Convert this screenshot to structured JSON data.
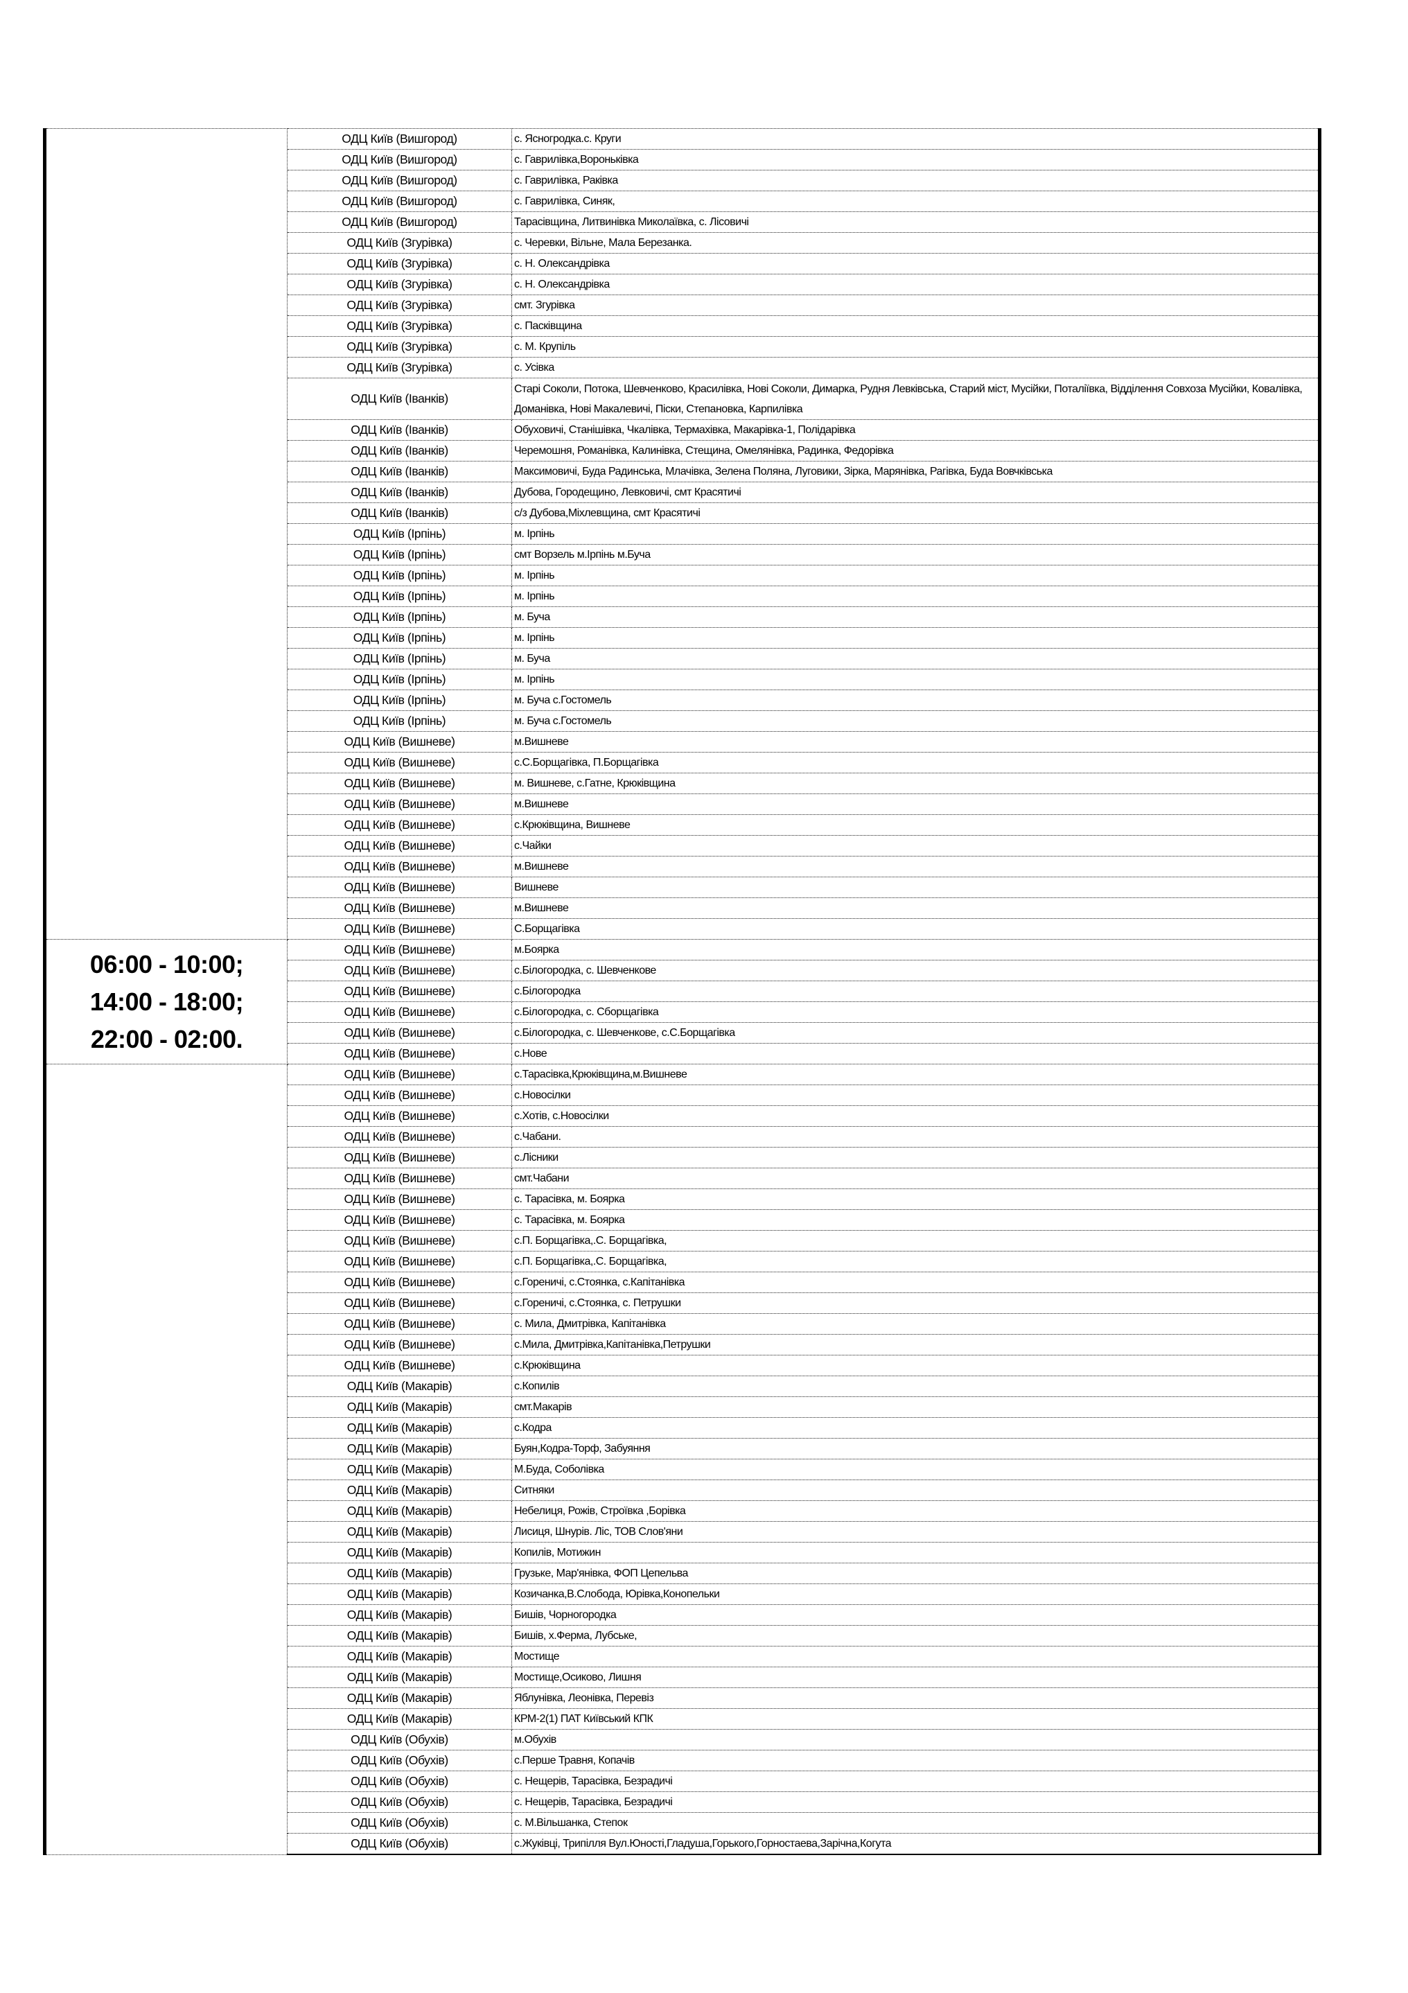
{
  "schedule": {
    "time_lines": [
      "06:00 - 10:00;",
      "14:00 - 18:00;",
      "22:00 - 02:00."
    ],
    "rows": [
      {
        "odc": "ОДЦ Київ (Вишгород)",
        "area": "с. Ясногродка.с. Круги"
      },
      {
        "odc": "ОДЦ Київ (Вишгород)",
        "area": "с. Гаврилівка,Вороньківка"
      },
      {
        "odc": "ОДЦ Київ (Вишгород)",
        "area": "с. Гаврилівка, Раківка"
      },
      {
        "odc": "ОДЦ Київ (Вишгород)",
        "area": "с. Гаврилівка, Синяк,"
      },
      {
        "odc": "ОДЦ Київ (Вишгород)",
        "area": "Тарасівщина, Литвинівка  Миколаївка, с. Лісовичі"
      },
      {
        "odc": "ОДЦ Київ (Згурівка)",
        "area": "с. Черевки, Вільне, Мала Березанка."
      },
      {
        "odc": "ОДЦ Київ (Згурівка)",
        "area": "с. Н. Олександрівка"
      },
      {
        "odc": "ОДЦ Київ (Згурівка)",
        "area": "с. Н. Олександрівка"
      },
      {
        "odc": "ОДЦ Київ (Згурівка)",
        "area": "смт. Згурівка"
      },
      {
        "odc": "ОДЦ Київ (Згурівка)",
        "area": "с. Пасківщина"
      },
      {
        "odc": "ОДЦ Київ (Згурівка)",
        "area": "с. М. Крупіль"
      },
      {
        "odc": "ОДЦ Київ (Згурівка)",
        "area": "с. Усівка"
      },
      {
        "odc": "ОДЦ Київ (Іванків)",
        "area": "Старі Соколи, Потока, Шевченково, Красилівка, Нові Соколи, Димарка, Рудня Левківська, Старий міст, Мусійки, Поталіївка, Відділення Совхоза Мусійки, Ковалівка, Доманівка, Нові Макалевичі, Піски, Степановка, Карпилівка",
        "tall": true
      },
      {
        "odc": "ОДЦ Київ (Іванків)",
        "area": "Обуховичі, Станішівка, Чкалівка, Термахівка, Макарівка-1, Полідарівка"
      },
      {
        "odc": "ОДЦ Київ (Іванків)",
        "area": "Черемошня, Романівка, Калинівка, Стещина, Омелянівка, Радинка, Федорівка"
      },
      {
        "odc": "ОДЦ Київ (Іванків)",
        "area": "Максимовичі, Буда Радинська,  Млачівка, Зелена Поляна, Луговики, Зірка, Марянівка, Рагівка, Буда Вовчківська"
      },
      {
        "odc": "ОДЦ Київ (Іванків)",
        "area": "Дубова, Городещино, Левковичі, смт Красятичі"
      },
      {
        "odc": "ОДЦ Київ (Іванків)",
        "area": "с/з Дубова,Міхлевщина,  смт Красятичі"
      },
      {
        "odc": "ОДЦ Київ (Ірпінь)",
        "area": "м. Ірпінь"
      },
      {
        "odc": "ОДЦ Київ (Ірпінь)",
        "area": "смт  Ворзель м.Ірпінь м.Буча"
      },
      {
        "odc": "ОДЦ Київ (Ірпінь)",
        "area": "м. Ірпінь"
      },
      {
        "odc": "ОДЦ Київ (Ірпінь)",
        "area": "м. Ірпінь"
      },
      {
        "odc": "ОДЦ Київ (Ірпінь)",
        "area": "м. Буча"
      },
      {
        "odc": "ОДЦ Київ (Ірпінь)",
        "area": "м. Ірпінь"
      },
      {
        "odc": "ОДЦ Київ (Ірпінь)",
        "area": "м. Буча"
      },
      {
        "odc": "ОДЦ Київ (Ірпінь)",
        "area": "м. Ірпінь"
      },
      {
        "odc": "ОДЦ Київ (Ірпінь)",
        "area": "м. Буча с.Гостомель"
      },
      {
        "odc": "ОДЦ Київ (Ірпінь)",
        "area": "м. Буча с.Гостомель"
      },
      {
        "odc": "ОДЦ Київ (Вишневе)",
        "area": "м.Вишневе"
      },
      {
        "odc": "ОДЦ Київ (Вишневе)",
        "area": "с.С.Борщагівка, П.Борщагівка"
      },
      {
        "odc": "ОДЦ Київ (Вишневе)",
        "area": "м. Вишневе, с.Гатне, Крюківщина"
      },
      {
        "odc": "ОДЦ Київ (Вишневе)",
        "area": "м.Вишневе"
      },
      {
        "odc": "ОДЦ Київ (Вишневе)",
        "area": "с.Крюківщина, Вишневе"
      },
      {
        "odc": "ОДЦ Київ (Вишневе)",
        "area": "с.Чайки"
      },
      {
        "odc": "ОДЦ Київ (Вишневе)",
        "area": "м.Вишневе"
      },
      {
        "odc": "ОДЦ Київ (Вишневе)",
        "area": "Вишневе"
      },
      {
        "odc": "ОДЦ Київ (Вишневе)",
        "area": "м.Вишневе"
      },
      {
        "odc": "ОДЦ Київ (Вишневе)",
        "area": "С.Борщагівка"
      },
      {
        "odc": "ОДЦ Київ (Вишневе)",
        "area": "м.Боярка"
      },
      {
        "odc": "ОДЦ Київ (Вишневе)",
        "area": "с.Білогородка, с. Шевченкове"
      },
      {
        "odc": "ОДЦ Київ (Вишневе)",
        "area": "с.Білогородка"
      },
      {
        "odc": "ОДЦ Київ (Вишневе)",
        "area": "с.Білогородка, с. Сборщагівка"
      },
      {
        "odc": "ОДЦ Київ (Вишневе)",
        "area": "с.Білогородка, с. Шевченкове, с.С.Борщагівка"
      },
      {
        "odc": "ОДЦ Київ (Вишневе)",
        "area": "с.Нове"
      },
      {
        "odc": "ОДЦ Київ (Вишневе)",
        "area": "с.Тарасівка,Крюківщина,м.Вишневе"
      },
      {
        "odc": "ОДЦ Київ (Вишневе)",
        "area": "с.Новосілки"
      },
      {
        "odc": "ОДЦ Київ (Вишневе)",
        "area": "с.Хотів, с.Новосілки"
      },
      {
        "odc": "ОДЦ Київ (Вишневе)",
        "area": "с.Чабани."
      },
      {
        "odc": "ОДЦ Київ (Вишневе)",
        "area": "с.Лісники"
      },
      {
        "odc": "ОДЦ Київ (Вишневе)",
        "area": "смт.Чабани"
      },
      {
        "odc": "ОДЦ Київ (Вишневе)",
        "area": "с. Тарасівка, м. Боярка"
      },
      {
        "odc": "ОДЦ Київ (Вишневе)",
        "area": "с. Тарасівка,  м. Боярка"
      },
      {
        "odc": "ОДЦ Київ (Вишневе)",
        "area": "с.П. Борщагівка,.С. Борщагівка,"
      },
      {
        "odc": "ОДЦ Київ (Вишневе)",
        "area": "с.П. Борщагівка,.С. Борщагівка,"
      },
      {
        "odc": "ОДЦ Київ (Вишневе)",
        "area": "с.Гореничі, с.Стоянка, с.Капітанівка"
      },
      {
        "odc": "ОДЦ Київ (Вишневе)",
        "area": "с.Гореничі, с.Стоянка, с. Петрушки"
      },
      {
        "odc": "ОДЦ Київ (Вишневе)",
        "area": "с. Мила, Дмитрівка, Капітанівка"
      },
      {
        "odc": "ОДЦ Київ (Вишневе)",
        "area": "с.Мила, Дмитрівка,Капітанівка,Петрушки"
      },
      {
        "odc": "ОДЦ Київ (Вишневе)",
        "area": "с.Крюківщина"
      },
      {
        "odc": "ОДЦ Київ (Макарів)",
        "area": "с.Копилів"
      },
      {
        "odc": "ОДЦ Київ (Макарів)",
        "area": "смт.Макарів"
      },
      {
        "odc": "ОДЦ Київ (Макарів)",
        "area": "с.Кодра"
      },
      {
        "odc": "ОДЦ Київ (Макарів)",
        "area": "Буян,Кодра-Торф, Забуяння"
      },
      {
        "odc": "ОДЦ Київ (Макарів)",
        "area": "М.Буда, Соболівка"
      },
      {
        "odc": "ОДЦ Київ (Макарів)",
        "area": "Ситняки"
      },
      {
        "odc": "ОДЦ Київ (Макарів)",
        "area": "Небелиця, Рожів, Строївка ,Борівка"
      },
      {
        "odc": "ОДЦ Київ (Макарів)",
        "area": "Лисиця, Шнурів. Ліс, ТОВ Слов'яни"
      },
      {
        "odc": "ОДЦ Київ (Макарів)",
        "area": "Копилів, Мотижин"
      },
      {
        "odc": "ОДЦ Київ (Макарів)",
        "area": "Грузьке, Мар'янівка, ФОП Цепельва"
      },
      {
        "odc": "ОДЦ Київ (Макарів)",
        "area": "Козичанка,В.Слобода, Юрівка,Конопельки"
      },
      {
        "odc": "ОДЦ Київ (Макарів)",
        "area": "Бишів, Чорногородка"
      },
      {
        "odc": "ОДЦ Київ (Макарів)",
        "area": "Бишів, х.Ферма, Лубське,"
      },
      {
        "odc": "ОДЦ Київ (Макарів)",
        "area": "Мостище"
      },
      {
        "odc": "ОДЦ Київ (Макарів)",
        "area": "Мостище,Осиково, Лишня"
      },
      {
        "odc": "ОДЦ Київ (Макарів)",
        "area": "Яблунівка, Леонівка, Перевіз"
      },
      {
        "odc": "ОДЦ Київ (Макарів)",
        "area": "КРМ-2(1) ПАТ  Київський КПК"
      },
      {
        "odc": "ОДЦ Київ (Обухів)",
        "area": "м.Обухів"
      },
      {
        "odc": "ОДЦ Київ (Обухів)",
        "area": "с.Перше Травня, Копачів"
      },
      {
        "odc": "ОДЦ Київ (Обухів)",
        "area": "с. Нещерів, Тарасівка, Безрадичі"
      },
      {
        "odc": "ОДЦ Київ (Обухів)",
        "area": "с. Нещерів, Тарасівка, Безрадичі"
      },
      {
        "odc": "ОДЦ Київ (Обухів)",
        "area": "с. М.Вільшанка, Степок"
      },
      {
        "odc": "ОДЦ Київ (Обухів)",
        "area": "с.Жуківці, Трипілля Вул.Юності,Гладуша,Горького,Горностаева,Зарічна,Когута"
      }
    ]
  }
}
